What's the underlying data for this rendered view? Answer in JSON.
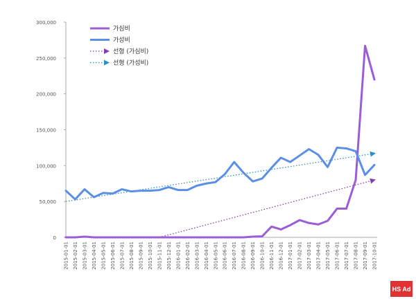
{
  "chart_data": {
    "type": "line",
    "x": [
      "2015-01-01",
      "2015-02-01",
      "2015-03-01",
      "2015-04-01",
      "2015-05-01",
      "2015-06-01",
      "2015-07-01",
      "2015-08-01",
      "2015-09-01",
      "2015-10-01",
      "2015-11-01",
      "2015-12-01",
      "2016-01-01",
      "2016-02-01",
      "2016-03-01",
      "2016-04-01",
      "2016-05-01",
      "2016-06-01",
      "2016-07-01",
      "2016-08-01",
      "2016-09-01",
      "2016-10-01",
      "2016-11-01",
      "2016-12-01",
      "2017-01-01",
      "2017-02-01",
      "2017-03-01",
      "2017-04-01",
      "2017-05-01",
      "2017-06-01",
      "2017-07-01",
      "2017-08-01",
      "2017-09-01",
      "2017-10-01"
    ],
    "series": [
      {
        "name": "가심비",
        "color": "#9b5cd8",
        "values": [
          0,
          0,
          1000,
          0,
          0,
          0,
          0,
          0,
          0,
          0,
          0,
          0,
          0,
          0,
          0,
          0,
          0,
          0,
          0,
          0,
          1000,
          1500,
          15000,
          11000,
          17000,
          24000,
          20000,
          18000,
          23000,
          40000,
          40000,
          80000,
          267000,
          220000
        ]
      },
      {
        "name": "가성비",
        "color": "#5b8fe6",
        "values": [
          65000,
          53000,
          67000,
          56000,
          62000,
          61000,
          67000,
          64000,
          65000,
          65000,
          66000,
          70000,
          66000,
          66000,
          72000,
          75000,
          77000,
          88000,
          105000,
          90000,
          78000,
          82000,
          97000,
          111000,
          105000,
          114000,
          123000,
          115000,
          98000,
          125000,
          124000,
          120000,
          87000,
          101000
        ]
      }
    ],
    "trendlines": [
      {
        "name": "선형 (가심비)",
        "color": "#7b3fb0",
        "start": 0,
        "end": 80000,
        "from_index": 10
      },
      {
        "name": "선형 (가성비)",
        "color": "#2a8fc4",
        "start": 50000,
        "end": 117000,
        "from_index": 0
      }
    ],
    "yticks": [
      "0",
      "50,000",
      "100,000",
      "150,000",
      "200,000",
      "250,000",
      "300,000"
    ],
    "ylim": [
      0,
      300000
    ],
    "legend_position": "top-left",
    "logo_text": "HS Ad"
  }
}
